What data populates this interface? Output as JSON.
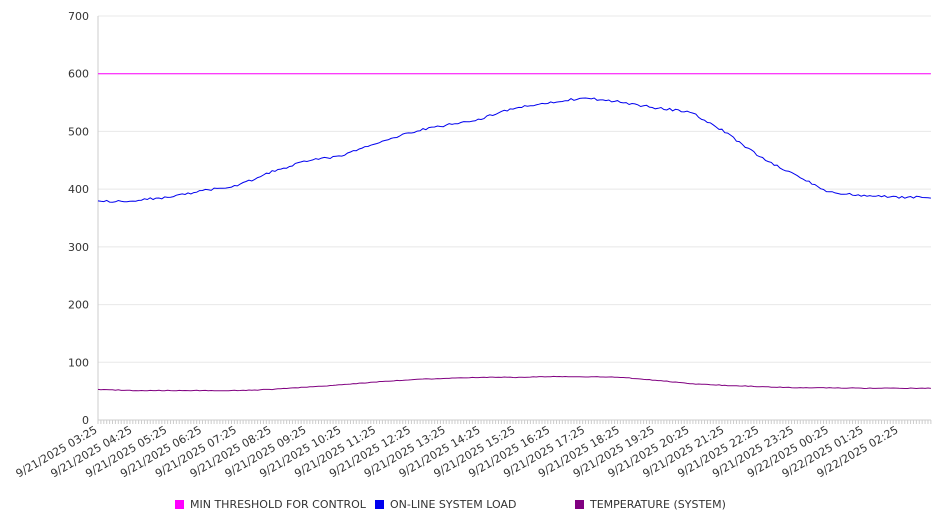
{
  "chart_data": {
    "type": "line",
    "title": "",
    "xlabel": "",
    "ylabel": "",
    "ylim": [
      0,
      700
    ],
    "yticks": [
      0,
      100,
      200,
      300,
      400,
      500,
      600,
      700
    ],
    "grid": true,
    "legend_position": "bottom",
    "x_tick_labels": [
      "9/21/2025 03:25",
      "9/21/2025 04:25",
      "9/21/2025 05:25",
      "9/21/2025 06:25",
      "9/21/2025 07:25",
      "9/21/2025 08:25",
      "9/21/2025 09:25",
      "9/21/2025 10:25",
      "9/21/2025 11:25",
      "9/21/2025 12:25",
      "9/21/2025 13:25",
      "9/21/2025 14:25",
      "9/21/2025 15:25",
      "9/21/2025 16:25",
      "9/21/2025 17:25",
      "9/21/2025 18:25",
      "9/21/2025 19:25",
      "9/21/2025 20:25",
      "9/21/2025 21:25",
      "9/21/2025 22:25",
      "9/21/2025 23:25",
      "9/22/2025 00:25",
      "9/22/2025 01:25",
      "9/22/2025 02:25"
    ],
    "x_hours": [
      0,
      1,
      2,
      3,
      4,
      5,
      6,
      7,
      8,
      9,
      10,
      11,
      12,
      13,
      14,
      15,
      16,
      17,
      18,
      19,
      20,
      21,
      22,
      23,
      23.92
    ],
    "x_range_hours": [
      0,
      23.92
    ],
    "series": [
      {
        "name": "MIN THRESHOLD FOR CONTROL",
        "color": "#ff00ff",
        "values": [
          600,
          600,
          600,
          600,
          600,
          600,
          600,
          600,
          600,
          600,
          600,
          600,
          600,
          600,
          600,
          600,
          600,
          600,
          600,
          600,
          600,
          600,
          600,
          600,
          600
        ]
      },
      {
        "name": "ON-LINE SYSTEM LOAD",
        "color": "#0000ee",
        "values": [
          378,
          380,
          386,
          397,
          406,
          430,
          449,
          458,
          480,
          499,
          511,
          522,
          541,
          551,
          558,
          551,
          541,
          534,
          499,
          456,
          425,
          395,
          388,
          386,
          386
        ]
      },
      {
        "name": "TEMPERATURE (SYSTEM)",
        "color": "#800080",
        "values": [
          53,
          51,
          51,
          51,
          51,
          53,
          57,
          61,
          66,
          70,
          72,
          74,
          74,
          75,
          75,
          74,
          69,
          63,
          60,
          58,
          56,
          56,
          55,
          55,
          55
        ]
      }
    ]
  }
}
